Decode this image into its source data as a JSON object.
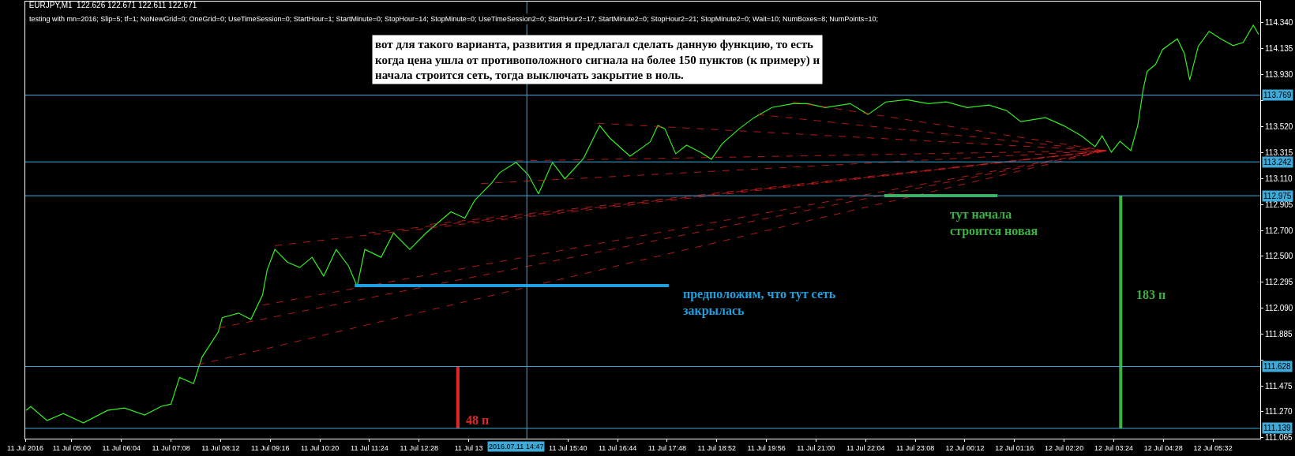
{
  "chart_data": {
    "type": "line",
    "title": "EURJPY,M1  122.626 122.671 122.611 122.671",
    "subtitle": "testing with mn=2016; Slip=5; tf=1; NoNewGrid=0; OneGrid=0; UseTimeSession=0; StartHour=1; StartMinute=0; StopHour=14; StopMinute=0; UseTimeSession2=0; StartHour2=17; StartMinute2=0; StopHour2=21; StopMinute2=0; Wait=10; NumBoxes=8; NumPoints=10;",
    "annotations": [
      "вот для такого варианта, развития я предлагал сделать данную функцию, то есть\nкогда цена ушла от противоположного сигнала на более 150 пунктов (к примеру) и\nначала строится сеть, тогда выключать закрытие в ноль.",
      "предположим, что тут сеть\nзакрылась",
      "тут начала\nстроится новая",
      "48 п",
      "183 п"
    ],
    "series": [
      {
        "color": "#33ee22",
        "x": [
          "2016-07-11T04:01",
          "2016-07-11T04:07",
          "2016-07-11T04:28",
          "2016-07-11T04:49",
          "2016-07-11T05:15",
          "2016-07-11T05:46",
          "2016-07-11T06:08",
          "2016-07-11T06:34",
          "2016-07-11T06:55",
          "2016-07-11T07:08",
          "2016-07-11T07:19",
          "2016-07-11T07:37",
          "2016-07-11T07:48",
          "2016-07-11T08:09",
          "2016-07-11T08:14",
          "2016-07-11T08:35",
          "2016-07-11T08:51",
          "2016-07-11T09:06",
          "2016-07-11T09:12",
          "2016-07-11T09:22",
          "2016-07-11T09:38",
          "2016-07-11T09:54",
          "2016-07-11T10:10",
          "2016-07-11T10:25",
          "2016-07-11T10:41",
          "2016-07-11T10:57",
          "2016-07-11T11:08",
          "2016-07-11T11:18",
          "2016-07-11T11:39",
          "2016-07-11T11:55",
          "2016-07-11T12:16",
          "2016-07-11T12:37",
          "2016-07-11T13:09",
          "2016-07-11T13:27",
          "2016-07-11T13:40",
          "2016-07-11T14:01",
          "2016-07-11T14:12",
          "2016-07-11T14:33",
          "2016-07-11T14:49",
          "2016-07-11T15:02",
          "2016-07-11T15:20",
          "2016-07-11T15:36",
          "2016-07-11T16:00",
          "2016-07-11T16:13",
          "2016-07-11T16:21",
          "2016-07-11T16:34",
          "2016-07-11T17:00",
          "2016-07-11T17:26",
          "2016-07-11T17:36",
          "2016-07-11T17:45",
          "2016-07-11T17:59",
          "2016-07-11T18:13",
          "2016-07-11T18:31",
          "2016-07-11T18:45",
          "2016-07-11T18:59",
          "2016-07-11T19:21",
          "2016-07-11T19:40",
          "2016-07-11T20:03",
          "2016-07-11T20:30",
          "2016-07-11T20:49",
          "2016-07-11T21:12",
          "2016-07-11T21:44",
          "2016-07-11T22:07",
          "2016-07-11T22:30",
          "2016-07-11T22:57",
          "2016-07-11T23:25",
          "2016-07-11T23:48",
          "2016-07-12T00:15",
          "2016-07-12T00:43",
          "2016-07-12T01:06",
          "2016-07-12T01:24",
          "2016-07-12T01:56",
          "2016-07-12T02:19",
          "2016-07-12T02:42",
          "2016-07-12T03:00",
          "2016-07-12T03:09",
          "2016-07-12T03:21",
          "2016-07-12T03:32",
          "2016-07-12T03:46",
          "2016-07-12T03:55",
          "2016-07-12T04:02",
          "2016-07-12T04:07",
          "2016-07-12T04:18",
          "2016-07-12T04:27",
          "2016-07-12T04:46",
          "2016-07-12T04:55",
          "2016-07-12T05:02",
          "2016-07-12T05:13",
          "2016-07-12T05:27",
          "2016-07-12T05:43",
          "2016-07-12T05:58",
          "2016-07-12T06:11",
          "2016-07-12T06:24",
          "2016-07-12T06:31"
        ],
        "values": [
          111.281,
          111.312,
          111.201,
          111.256,
          111.182,
          111.281,
          111.3,
          111.244,
          111.312,
          111.331,
          111.541,
          111.492,
          111.702,
          111.9,
          112.012,
          112.049,
          111.999,
          112.191,
          112.39,
          112.551,
          112.451,
          112.408,
          112.489,
          112.34,
          112.551,
          112.42,
          112.259,
          112.551,
          112.489,
          112.681,
          112.551,
          112.681,
          112.848,
          112.798,
          112.941,
          113.071,
          113.157,
          113.238,
          113.139,
          112.99,
          113.238,
          113.108,
          113.269,
          113.43,
          113.529,
          113.43,
          113.287,
          113.399,
          113.529,
          113.504,
          113.306,
          113.374,
          113.318,
          113.263,
          113.386,
          113.504,
          113.591,
          113.671,
          113.702,
          113.702,
          113.671,
          113.702,
          113.616,
          113.715,
          113.733,
          113.702,
          113.715,
          113.671,
          113.69,
          113.646,
          113.56,
          113.591,
          113.529,
          113.448,
          113.362,
          113.448,
          113.318,
          113.405,
          113.331,
          113.529,
          113.814,
          113.956,
          114.012,
          114.129,
          114.213,
          114.099,
          113.888,
          114.154,
          114.272,
          114.21,
          114.16,
          114.185,
          114.321,
          114.247
        ]
      },
      {
        "color": "#e02020",
        "line_style": "dashed",
        "x": [
          "2016-07-11T07:42",
          "2016-07-12T03:14"
        ],
        "values": [
          111.64,
          113.331
        ]
      },
      {
        "color": "#e02020",
        "line_style": "dashed",
        "x": [
          "2016-07-11T08:09",
          "2016-07-12T03:14"
        ],
        "values": [
          111.931,
          113.331
        ]
      },
      {
        "color": "#e02020",
        "line_style": "dashed",
        "x": [
          "2016-07-11T09:06",
          "2016-07-12T03:14"
        ],
        "values": [
          112.111,
          113.331
        ]
      },
      {
        "color": "#e02020",
        "line_style": "dashed",
        "x": [
          "2016-07-11T09:22",
          "2016-07-12T03:14"
        ],
        "values": [
          112.581,
          113.331
        ]
      },
      {
        "color": "#e02020",
        "line_style": "dashed",
        "x": [
          "2016-07-11T11:23",
          "2016-07-12T03:14"
        ],
        "values": [
          112.681,
          113.331
        ]
      },
      {
        "color": "#e02020",
        "line_style": "dashed",
        "x": [
          "2016-07-11T12:42",
          "2016-07-12T03:14"
        ],
        "values": [
          112.749,
          113.331
        ]
      },
      {
        "color": "#e02020",
        "line_style": "dashed",
        "x": [
          "2016-07-11T13:48",
          "2016-07-12T03:14"
        ],
        "values": [
          113.071,
          113.331
        ]
      },
      {
        "color": "#e02020",
        "line_style": "dashed",
        "x": [
          "2016-07-11T14:33",
          "2016-07-12T03:14"
        ],
        "values": [
          113.25,
          113.331
        ]
      },
      {
        "color": "#e02020",
        "line_style": "dashed",
        "x": [
          "2016-07-11T16:18",
          "2016-07-12T03:14"
        ],
        "values": [
          113.547,
          113.331
        ]
      },
      {
        "color": "#e02020",
        "line_style": "dashed",
        "x": [
          "2016-07-11T19:44",
          "2016-07-12T03:14"
        ],
        "values": [
          113.616,
          113.331
        ]
      },
      {
        "color": "#e02020",
        "line_style": "dashed",
        "x": [
          "2016-07-11T20:30",
          "2016-07-12T03:14"
        ],
        "values": [
          113.715,
          113.331
        ]
      },
      {
        "color": "#1ea0e0",
        "x": [
          "2016-07-11T11:05",
          "2016-07-11T17:50"
        ],
        "values": [
          112.266,
          112.266
        ]
      },
      {
        "color": "#3cb043",
        "x": [
          "2016-07-11T22:28",
          "2016-07-12T00:54"
        ],
        "values": [
          112.975,
          112.975
        ]
      },
      {
        "color": "#e02828",
        "x": [
          "2016-07-11T13:18",
          "2016-07-11T13:18"
        ],
        "values": [
          111.628,
          111.139
        ]
      },
      {
        "color": "#3cb043",
        "x": [
          "2016-07-12T03:33",
          "2016-07-12T03:33"
        ],
        "values": [
          112.975,
          111.139
        ]
      }
    ],
    "xlim": [
      "2016-07-11T04:00",
      "2016-07-12T06:33"
    ],
    "xticks": [
      {
        "value": "2016-07-11T04:00",
        "label": "11 Jul 2016"
      },
      {
        "value": "2016-07-11T05:00",
        "label": "11 Jul 05:00"
      },
      {
        "value": "2016-07-11T06:04",
        "label": "11 Jul 06:04"
      },
      {
        "value": "2016-07-11T07:08",
        "label": "11 Jul 07:08"
      },
      {
        "value": "2016-07-11T08:12",
        "label": "11 Jul 08:12"
      },
      {
        "value": "2016-07-11T09:16",
        "label": "11 Jul 09:16"
      },
      {
        "value": "2016-07-11T10:20",
        "label": "11 Jul 10:20"
      },
      {
        "value": "2016-07-11T11:24",
        "label": "11 Jul 11:24"
      },
      {
        "value": "2016-07-11T12:28",
        "label": "11 Jul 12:28"
      },
      {
        "value": "2016-07-11T13:32",
        "label": "11 Jul 13"
      },
      {
        "value": "2016-07-11T15:40",
        "label": "11 Jul 15:40"
      },
      {
        "value": "2016-07-11T16:44",
        "label": "11 Jul 16:44"
      },
      {
        "value": "2016-07-11T17:48",
        "label": "11 Jul 17:48"
      },
      {
        "value": "2016-07-11T18:52",
        "label": "11 Jul 18:52"
      },
      {
        "value": "2016-07-11T19:56",
        "label": "11 Jul 19:56"
      },
      {
        "value": "2016-07-11T21:00",
        "label": "11 Jul 21:00"
      },
      {
        "value": "2016-07-11T22:04",
        "label": "11 Jul 22:04"
      },
      {
        "value": "2016-07-11T23:08",
        "label": "11 Jul 23:08"
      },
      {
        "value": "2016-07-12T00:12",
        "label": "12 Jul 00:12"
      },
      {
        "value": "2016-07-12T01:16",
        "label": "12 Jul 01:16"
      },
      {
        "value": "2016-07-12T02:20",
        "label": "12 Jul 02:20"
      },
      {
        "value": "2016-07-12T03:24",
        "label": "12 Jul 03:24"
      },
      {
        "value": "2016-07-12T04:28",
        "label": "12 Jul 04:28"
      },
      {
        "value": "2016-07-12T05:32",
        "label": "12 Jul 05:32"
      }
    ],
    "ylim": [
      111.058,
      114.507
    ],
    "yticks": [
      {
        "value": 111.065,
        "label": "111.065"
      },
      {
        "value": 111.27,
        "label": "111.270"
      },
      {
        "value": 111.475,
        "label": "111.475"
      },
      {
        "value": 111.68,
        "label": null
      },
      {
        "value": 111.885,
        "label": "111.885"
      },
      {
        "value": 112.09,
        "label": "112.090"
      },
      {
        "value": 112.295,
        "label": "112.295"
      },
      {
        "value": 112.5,
        "label": "112.500"
      },
      {
        "value": 112.7,
        "label": "112.700"
      },
      {
        "value": 112.905,
        "label": "112.905"
      },
      {
        "value": 113.11,
        "label": "113.110"
      },
      {
        "value": 113.315,
        "label": "113.315"
      },
      {
        "value": 113.52,
        "label": "113.520"
      },
      {
        "value": 113.725,
        "label": null
      },
      {
        "value": 113.93,
        "label": "113.930"
      },
      {
        "value": 114.135,
        "label": "114.135"
      },
      {
        "value": 114.34,
        "label": "114.340"
      }
    ],
    "ref_lines": [
      {
        "axis": "y",
        "value": 113.769,
        "label": "113.769",
        "color": "#3fa9d8"
      },
      {
        "axis": "y",
        "value": 113.242,
        "label": "113.242",
        "color": "#3fa9d8"
      },
      {
        "axis": "y",
        "value": 112.975,
        "label": "112.975",
        "color": "#3fa9d8"
      },
      {
        "axis": "y",
        "value": 111.628,
        "label": "111.628",
        "color": "#3fa9d8"
      },
      {
        "axis": "y",
        "value": 111.139,
        "label": "111.139",
        "color": "#3fa9d8"
      },
      {
        "axis": "x",
        "value": "2016-07-11T14:47",
        "label": "2016.07.11 14:47",
        "color": "#3fa9d8"
      }
    ]
  }
}
